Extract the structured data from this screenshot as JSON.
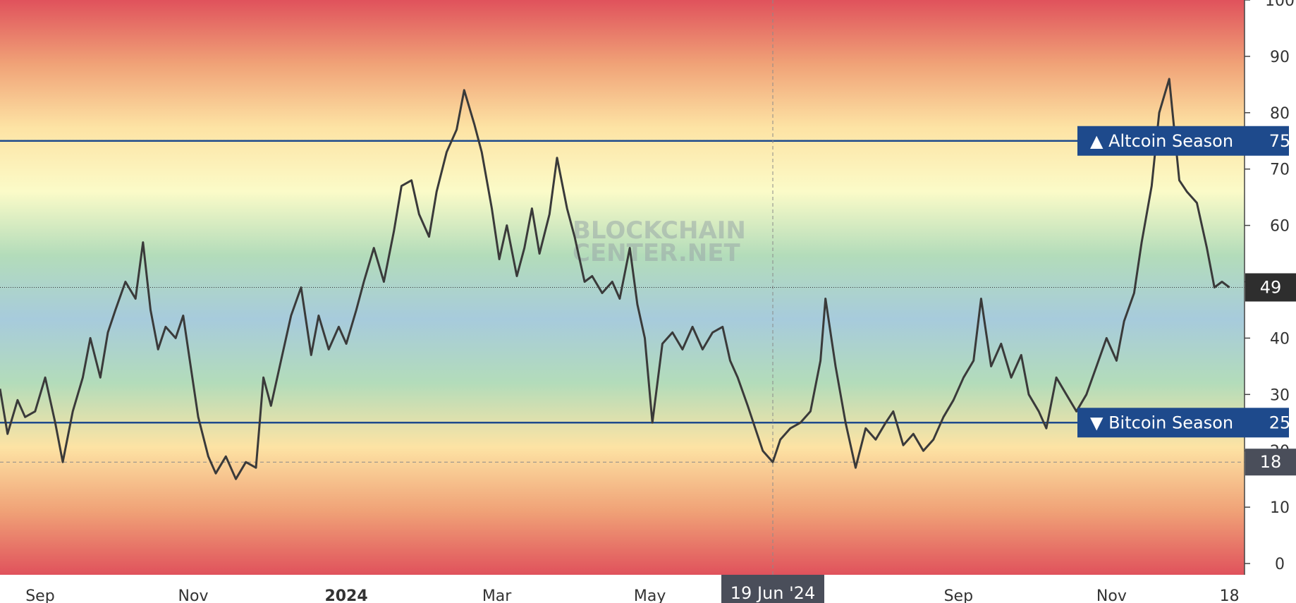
{
  "chart_data": {
    "type": "line",
    "ylim": [
      -2,
      100
    ],
    "y_ticks": [
      0,
      10,
      20,
      30,
      40,
      50,
      60,
      70,
      80,
      90,
      100
    ],
    "x_ticks": [
      {
        "label": "Sep",
        "x": "2023-09-01"
      },
      {
        "label": "Nov",
        "x": "2023-11-01"
      },
      {
        "label": "2024",
        "x": "2024-01-01",
        "bold": true
      },
      {
        "label": "Mar",
        "x": "2024-03-01"
      },
      {
        "label": "May",
        "x": "2024-05-01"
      },
      {
        "label": "Sep",
        "x": "2024-09-01"
      },
      {
        "label": "Nov",
        "x": "2024-11-01"
      },
      {
        "label": "18",
        "x": "2024-12-18"
      }
    ],
    "xlim": [
      "2023-08-16",
      "2024-12-24"
    ],
    "series": [
      {
        "color": "#3a3a3a",
        "points": [
          [
            "2023-08-16",
            31
          ],
          [
            "2023-08-19",
            23
          ],
          [
            "2023-08-23",
            29
          ],
          [
            "2023-08-26",
            26
          ],
          [
            "2023-08-30",
            27
          ],
          [
            "2023-09-03",
            33
          ],
          [
            "2023-09-07",
            25
          ],
          [
            "2023-09-10",
            18
          ],
          [
            "2023-09-14",
            27
          ],
          [
            "2023-09-18",
            33
          ],
          [
            "2023-09-21",
            40
          ],
          [
            "2023-09-25",
            33
          ],
          [
            "2023-09-28",
            41
          ],
          [
            "2023-10-01",
            45
          ],
          [
            "2023-10-05",
            50
          ],
          [
            "2023-10-09",
            47
          ],
          [
            "2023-10-12",
            57
          ],
          [
            "2023-10-15",
            45
          ],
          [
            "2023-10-18",
            38
          ],
          [
            "2023-10-21",
            42
          ],
          [
            "2023-10-25",
            40
          ],
          [
            "2023-10-28",
            44
          ],
          [
            "2023-10-31",
            35
          ],
          [
            "2023-11-03",
            26
          ],
          [
            "2023-11-07",
            19
          ],
          [
            "2023-11-10",
            16
          ],
          [
            "2023-11-14",
            19
          ],
          [
            "2023-11-18",
            15
          ],
          [
            "2023-11-22",
            18
          ],
          [
            "2023-11-26",
            17
          ],
          [
            "2023-11-29",
            33
          ],
          [
            "2023-12-02",
            28
          ],
          [
            "2023-12-06",
            36
          ],
          [
            "2023-12-10",
            44
          ],
          [
            "2023-12-14",
            49
          ],
          [
            "2023-12-18",
            37
          ],
          [
            "2023-12-21",
            44
          ],
          [
            "2023-12-25",
            38
          ],
          [
            "2023-12-29",
            42
          ],
          [
            "2024-01-01",
            39
          ],
          [
            "2024-01-05",
            45
          ],
          [
            "2024-01-08",
            50
          ],
          [
            "2024-01-12",
            56
          ],
          [
            "2024-01-16",
            50
          ],
          [
            "2024-01-20",
            59
          ],
          [
            "2024-01-23",
            67
          ],
          [
            "2024-01-27",
            68
          ],
          [
            "2024-01-30",
            62
          ],
          [
            "2024-02-03",
            58
          ],
          [
            "2024-02-06",
            66
          ],
          [
            "2024-02-10",
            73
          ],
          [
            "2024-02-14",
            77
          ],
          [
            "2024-02-17",
            84
          ],
          [
            "2024-02-21",
            78
          ],
          [
            "2024-02-24",
            73
          ],
          [
            "2024-02-28",
            63
          ],
          [
            "2024-03-02",
            54
          ],
          [
            "2024-03-05",
            60
          ],
          [
            "2024-03-09",
            51
          ],
          [
            "2024-03-12",
            56
          ],
          [
            "2024-03-15",
            63
          ],
          [
            "2024-03-18",
            55
          ],
          [
            "2024-03-22",
            62
          ],
          [
            "2024-03-25",
            72
          ],
          [
            "2024-03-29",
            63
          ],
          [
            "2024-04-01",
            58
          ],
          [
            "2024-04-05",
            50
          ],
          [
            "2024-04-08",
            51
          ],
          [
            "2024-04-12",
            48
          ],
          [
            "2024-04-16",
            50
          ],
          [
            "2024-04-19",
            47
          ],
          [
            "2024-04-23",
            56
          ],
          [
            "2024-04-26",
            46
          ],
          [
            "2024-04-29",
            40
          ],
          [
            "2024-05-02",
            25
          ],
          [
            "2024-05-06",
            39
          ],
          [
            "2024-05-10",
            41
          ],
          [
            "2024-05-14",
            38
          ],
          [
            "2024-05-18",
            42
          ],
          [
            "2024-05-22",
            38
          ],
          [
            "2024-05-26",
            41
          ],
          [
            "2024-05-30",
            42
          ],
          [
            "2024-06-02",
            36
          ],
          [
            "2024-06-05",
            33
          ],
          [
            "2024-06-09",
            28
          ],
          [
            "2024-06-12",
            24
          ],
          [
            "2024-06-15",
            20
          ],
          [
            "2024-06-19",
            18
          ],
          [
            "2024-06-22",
            22
          ],
          [
            "2024-06-26",
            24
          ],
          [
            "2024-06-30",
            25
          ],
          [
            "2024-07-04",
            27
          ],
          [
            "2024-07-08",
            36
          ],
          [
            "2024-07-10",
            47
          ],
          [
            "2024-07-14",
            35
          ],
          [
            "2024-07-18",
            25
          ],
          [
            "2024-07-22",
            17
          ],
          [
            "2024-07-26",
            24
          ],
          [
            "2024-07-30",
            22
          ],
          [
            "2024-08-03",
            25
          ],
          [
            "2024-08-06",
            27
          ],
          [
            "2024-08-10",
            21
          ],
          [
            "2024-08-14",
            23
          ],
          [
            "2024-08-18",
            20
          ],
          [
            "2024-08-22",
            22
          ],
          [
            "2024-08-26",
            26
          ],
          [
            "2024-08-30",
            29
          ],
          [
            "2024-09-03",
            33
          ],
          [
            "2024-09-07",
            36
          ],
          [
            "2024-09-10",
            47
          ],
          [
            "2024-09-14",
            35
          ],
          [
            "2024-09-18",
            39
          ],
          [
            "2024-09-22",
            33
          ],
          [
            "2024-09-26",
            37
          ],
          [
            "2024-09-29",
            30
          ],
          [
            "2024-10-03",
            27
          ],
          [
            "2024-10-06",
            24
          ],
          [
            "2024-10-10",
            33
          ],
          [
            "2024-10-14",
            30
          ],
          [
            "2024-10-18",
            27
          ],
          [
            "2024-10-22",
            30
          ],
          [
            "2024-10-26",
            35
          ],
          [
            "2024-10-30",
            40
          ],
          [
            "2024-11-03",
            36
          ],
          [
            "2024-11-06",
            43
          ],
          [
            "2024-11-10",
            48
          ],
          [
            "2024-11-13",
            57
          ],
          [
            "2024-11-17",
            67
          ],
          [
            "2024-11-20",
            80
          ],
          [
            "2024-11-24",
            86
          ],
          [
            "2024-11-28",
            68
          ],
          [
            "2024-12-01",
            66
          ],
          [
            "2024-12-05",
            64
          ],
          [
            "2024-12-09",
            56
          ],
          [
            "2024-12-12",
            49
          ],
          [
            "2024-12-15",
            50
          ],
          [
            "2024-12-18",
            49
          ]
        ]
      }
    ],
    "reference_lines": [
      {
        "label": "▲ Altcoin Season",
        "value": 75,
        "value_label": "75",
        "color": "#1e4a8c"
      },
      {
        "label": "▼ Bitcoin Season",
        "value": 25,
        "value_label": "25",
        "color": "#1e4a8c"
      }
    ],
    "crosshair": {
      "x": "2024-06-19",
      "x_label": "19 Jun '24",
      "y": 18,
      "y_label": "18"
    },
    "last_value": {
      "y": 49,
      "label": "49"
    },
    "watermark": [
      "BLOCKCHAIN",
      "CENTER.NET"
    ],
    "background_gradient": [
      "#e0525c",
      "#f0a277",
      "#fde3a4",
      "#fbfbc8",
      "#b3dcba",
      "#a7cbdc",
      "#b3dcba",
      "#fde3a4",
      "#f0a277",
      "#e0525c"
    ],
    "grid": false
  }
}
